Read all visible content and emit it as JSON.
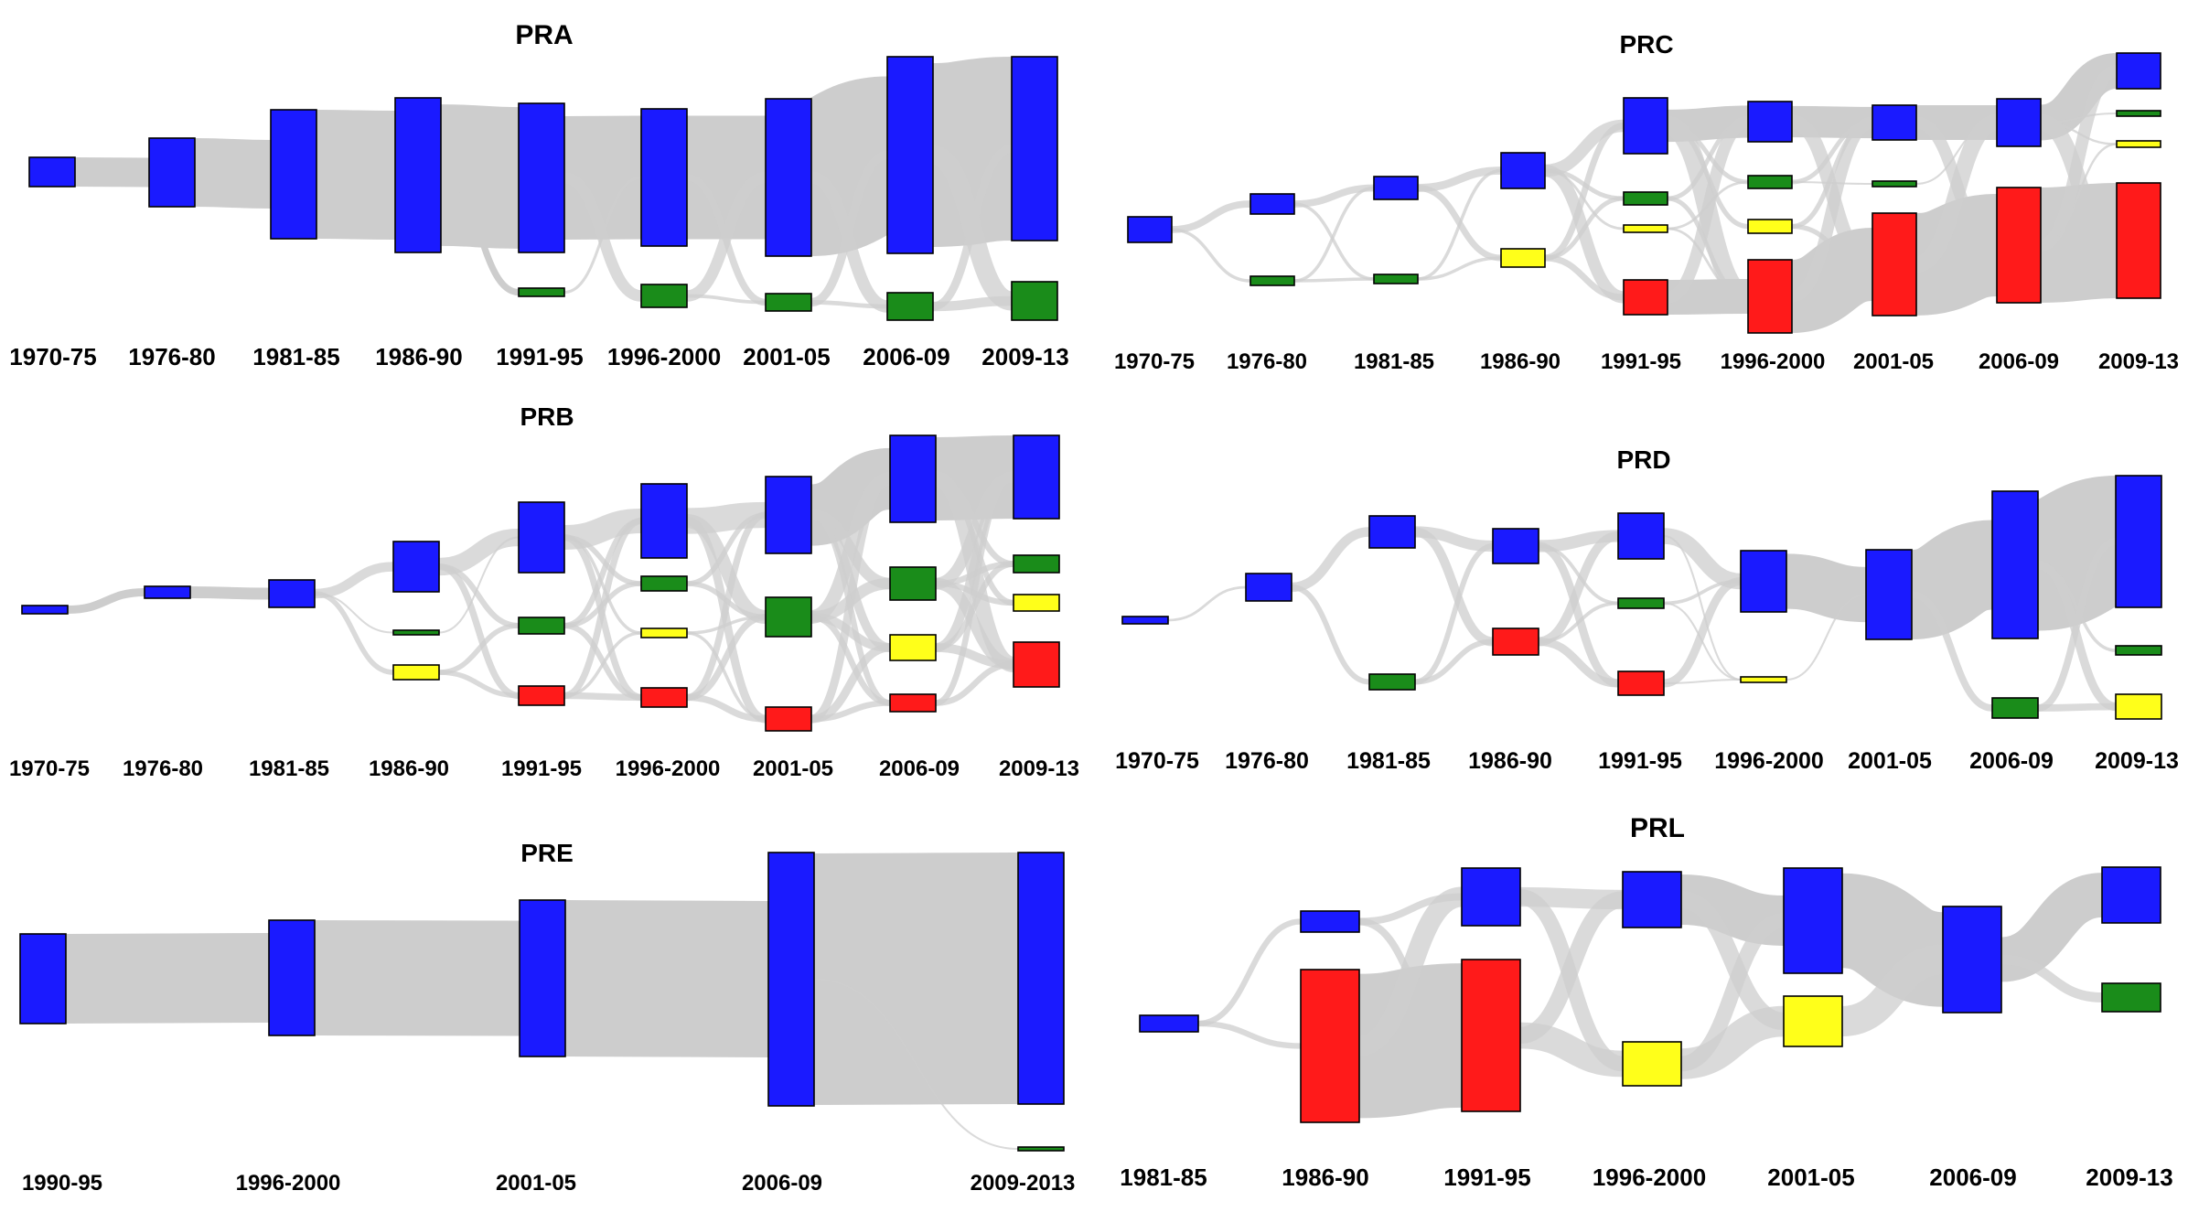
{
  "colors": {
    "flow": "#cdcdcd",
    "blue": "#1a1aff",
    "green": "#1a8c1a",
    "yellow": "#ffff1a",
    "red": "#ff1a1a"
  },
  "panels": [
    {
      "id": "pra",
      "title": "PRA",
      "periods": [
        "1970-75",
        "1976-80",
        "1981-85",
        "1986-90",
        "1991-95",
        "1996-2000",
        "2001-05",
        "2006-09",
        "2009-13"
      ],
      "nodes": [
        {
          "id": "a0b",
          "col": 0,
          "color": "blue"
        },
        {
          "id": "a1b",
          "col": 1,
          "color": "blue"
        },
        {
          "id": "a2b",
          "col": 2,
          "color": "blue"
        },
        {
          "id": "a3b",
          "col": 3,
          "color": "blue"
        },
        {
          "id": "a4b",
          "col": 4,
          "color": "blue"
        },
        {
          "id": "a4g",
          "col": 4,
          "color": "green"
        },
        {
          "id": "a5b",
          "col": 5,
          "color": "blue"
        },
        {
          "id": "a5g",
          "col": 5,
          "color": "green"
        },
        {
          "id": "a6b",
          "col": 6,
          "color": "blue"
        },
        {
          "id": "a6g",
          "col": 6,
          "color": "green"
        },
        {
          "id": "a7b",
          "col": 7,
          "color": "blue"
        },
        {
          "id": "a7g",
          "col": 7,
          "color": "green"
        },
        {
          "id": "a8b",
          "col": 8,
          "color": "blue"
        },
        {
          "id": "a8g",
          "col": 8,
          "color": "green"
        }
      ],
      "links": [
        [
          "a0b",
          "a1b"
        ],
        [
          "a1b",
          "a2b"
        ],
        [
          "a2b",
          "a3b"
        ],
        [
          "a3b",
          "a4b"
        ],
        [
          "a3b",
          "a4g"
        ],
        [
          "a4b",
          "a5b"
        ],
        [
          "a4b",
          "a5g"
        ],
        [
          "a4g",
          "a5b"
        ],
        [
          "a5b",
          "a6b"
        ],
        [
          "a5b",
          "a6g"
        ],
        [
          "a5g",
          "a6b"
        ],
        [
          "a5g",
          "a6g"
        ],
        [
          "a6b",
          "a7b"
        ],
        [
          "a6b",
          "a7g"
        ],
        [
          "a6g",
          "a7b"
        ],
        [
          "a6g",
          "a7g"
        ],
        [
          "a7b",
          "a8b"
        ],
        [
          "a7b",
          "a8g"
        ],
        [
          "a7g",
          "a8b"
        ],
        [
          "a7g",
          "a8g"
        ]
      ]
    },
    {
      "id": "prc",
      "title": "PRC",
      "periods": [
        "1970-75",
        "1976-80",
        "1981-85",
        "1986-90",
        "1991-95",
        "1996-2000",
        "2001-05",
        "2006-09",
        "2009-13"
      ],
      "nodes": [
        {
          "id": "c0b",
          "col": 0,
          "color": "blue"
        },
        {
          "id": "c1b",
          "col": 1,
          "color": "blue"
        },
        {
          "id": "c1g",
          "col": 1,
          "color": "green"
        },
        {
          "id": "c2b",
          "col": 2,
          "color": "blue"
        },
        {
          "id": "c2g",
          "col": 2,
          "color": "green"
        },
        {
          "id": "c3b",
          "col": 3,
          "color": "blue"
        },
        {
          "id": "c3y",
          "col": 3,
          "color": "yellow"
        },
        {
          "id": "c4b",
          "col": 4,
          "color": "blue"
        },
        {
          "id": "c4g",
          "col": 4,
          "color": "green"
        },
        {
          "id": "c4y",
          "col": 4,
          "color": "yellow"
        },
        {
          "id": "c4r",
          "col": 4,
          "color": "red"
        },
        {
          "id": "c5b",
          "col": 5,
          "color": "blue"
        },
        {
          "id": "c5g",
          "col": 5,
          "color": "green"
        },
        {
          "id": "c5y",
          "col": 5,
          "color": "yellow"
        },
        {
          "id": "c5r",
          "col": 5,
          "color": "red"
        },
        {
          "id": "c6b",
          "col": 6,
          "color": "blue"
        },
        {
          "id": "c6g",
          "col": 6,
          "color": "green"
        },
        {
          "id": "c6r",
          "col": 6,
          "color": "red"
        },
        {
          "id": "c7b",
          "col": 7,
          "color": "blue"
        },
        {
          "id": "c7r",
          "col": 7,
          "color": "red"
        },
        {
          "id": "c8b",
          "col": 8,
          "color": "blue"
        },
        {
          "id": "c8g",
          "col": 8,
          "color": "green"
        },
        {
          "id": "c8y",
          "col": 8,
          "color": "yellow"
        },
        {
          "id": "c8r",
          "col": 8,
          "color": "red"
        }
      ],
      "links": [
        [
          "c0b",
          "c1b"
        ],
        [
          "c0b",
          "c1g"
        ],
        [
          "c1b",
          "c2b"
        ],
        [
          "c1b",
          "c2g"
        ],
        [
          "c1g",
          "c2b"
        ],
        [
          "c1g",
          "c2g"
        ],
        [
          "c2b",
          "c3b"
        ],
        [
          "c2b",
          "c3y"
        ],
        [
          "c2g",
          "c3b"
        ],
        [
          "c2g",
          "c3y"
        ],
        [
          "c3b",
          "c4b"
        ],
        [
          "c3b",
          "c4g"
        ],
        [
          "c3b",
          "c4y"
        ],
        [
          "c3b",
          "c4r"
        ],
        [
          "c3y",
          "c4b"
        ],
        [
          "c3y",
          "c4g"
        ],
        [
          "c3y",
          "c4r"
        ],
        [
          "c4b",
          "c5b"
        ],
        [
          "c4b",
          "c5g"
        ],
        [
          "c4b",
          "c5y"
        ],
        [
          "c4b",
          "c5r"
        ],
        [
          "c4g",
          "c5b"
        ],
        [
          "c4g",
          "c5r"
        ],
        [
          "c4y",
          "c5g"
        ],
        [
          "c4y",
          "c5r"
        ],
        [
          "c4r",
          "c5r"
        ],
        [
          "c4r",
          "c5b"
        ],
        [
          "c5b",
          "c6b"
        ],
        [
          "c5b",
          "c6r"
        ],
        [
          "c5g",
          "c6b"
        ],
        [
          "c5g",
          "c6g"
        ],
        [
          "c5y",
          "c6b"
        ],
        [
          "c5y",
          "c6r"
        ],
        [
          "c5r",
          "c6r"
        ],
        [
          "c5r",
          "c6b"
        ],
        [
          "c6b",
          "c7b"
        ],
        [
          "c6b",
          "c7r"
        ],
        [
          "c6g",
          "c7b"
        ],
        [
          "c6r",
          "c7r"
        ],
        [
          "c6r",
          "c7b"
        ],
        [
          "c7b",
          "c8b"
        ],
        [
          "c7b",
          "c8g"
        ],
        [
          "c7b",
          "c8y"
        ],
        [
          "c7b",
          "c8r"
        ],
        [
          "c7r",
          "c8r"
        ],
        [
          "c7r",
          "c8b"
        ],
        [
          "c7r",
          "c8y"
        ]
      ]
    },
    {
      "id": "prb",
      "title": "PRB",
      "periods": [
        "1970-75",
        "1976-80",
        "1981-85",
        "1986-90",
        "1991-95",
        "1996-2000",
        "2001-05",
        "2006-09",
        "2009-13"
      ],
      "nodes": [
        {
          "id": "b0b",
          "col": 0,
          "color": "blue"
        },
        {
          "id": "b1b",
          "col": 1,
          "color": "blue"
        },
        {
          "id": "b2b",
          "col": 2,
          "color": "blue"
        },
        {
          "id": "b3b",
          "col": 3,
          "color": "blue"
        },
        {
          "id": "b3g",
          "col": 3,
          "color": "green"
        },
        {
          "id": "b3y",
          "col": 3,
          "color": "yellow"
        },
        {
          "id": "b4b",
          "col": 4,
          "color": "blue"
        },
        {
          "id": "b4g",
          "col": 4,
          "color": "green"
        },
        {
          "id": "b4r",
          "col": 4,
          "color": "red"
        },
        {
          "id": "b5b",
          "col": 5,
          "color": "blue"
        },
        {
          "id": "b5g",
          "col": 5,
          "color": "green"
        },
        {
          "id": "b5y",
          "col": 5,
          "color": "yellow"
        },
        {
          "id": "b5r",
          "col": 5,
          "color": "red"
        },
        {
          "id": "b6b",
          "col": 6,
          "color": "blue"
        },
        {
          "id": "b6g",
          "col": 6,
          "color": "green"
        },
        {
          "id": "b6r",
          "col": 6,
          "color": "red"
        },
        {
          "id": "b7b",
          "col": 7,
          "color": "blue"
        },
        {
          "id": "b7g",
          "col": 7,
          "color": "green"
        },
        {
          "id": "b7y",
          "col": 7,
          "color": "yellow"
        },
        {
          "id": "b7r",
          "col": 7,
          "color": "red"
        },
        {
          "id": "b8b",
          "col": 8,
          "color": "blue"
        },
        {
          "id": "b8g",
          "col": 8,
          "color": "green"
        },
        {
          "id": "b8y",
          "col": 8,
          "color": "yellow"
        },
        {
          "id": "b8r",
          "col": 8,
          "color": "red"
        }
      ],
      "links": [
        [
          "b0b",
          "b1b"
        ],
        [
          "b1b",
          "b2b"
        ],
        [
          "b2b",
          "b3b"
        ],
        [
          "b2b",
          "b3g"
        ],
        [
          "b2b",
          "b3y"
        ],
        [
          "b3b",
          "b4b"
        ],
        [
          "b3b",
          "b4g"
        ],
        [
          "b3b",
          "b4r"
        ],
        [
          "b3g",
          "b4b"
        ],
        [
          "b3y",
          "b4g"
        ],
        [
          "b3y",
          "b4r"
        ],
        [
          "b4b",
          "b5b"
        ],
        [
          "b4b",
          "b5g"
        ],
        [
          "b4b",
          "b5y"
        ],
        [
          "b4b",
          "b5r"
        ],
        [
          "b4g",
          "b5b"
        ],
        [
          "b4g",
          "b5g"
        ],
        [
          "b4g",
          "b5r"
        ],
        [
          "b4r",
          "b5r"
        ],
        [
          "b4r",
          "b5b"
        ],
        [
          "b4r",
          "b5y"
        ],
        [
          "b5b",
          "b6b"
        ],
        [
          "b5b",
          "b6g"
        ],
        [
          "b5b",
          "b6r"
        ],
        [
          "b5g",
          "b6b"
        ],
        [
          "b5g",
          "b6g"
        ],
        [
          "b5y",
          "b6g"
        ],
        [
          "b5y",
          "b6r"
        ],
        [
          "b5r",
          "b6r"
        ],
        [
          "b5r",
          "b6g"
        ],
        [
          "b5r",
          "b6b"
        ],
        [
          "b6b",
          "b7b"
        ],
        [
          "b6b",
          "b7g"
        ],
        [
          "b6b",
          "b7y"
        ],
        [
          "b6b",
          "b7r"
        ],
        [
          "b6g",
          "b7b"
        ],
        [
          "b6g",
          "b7g"
        ],
        [
          "b6g",
          "b7y"
        ],
        [
          "b6g",
          "b7r"
        ],
        [
          "b6r",
          "b7r"
        ],
        [
          "b6r",
          "b7y"
        ],
        [
          "b6r",
          "b7b"
        ],
        [
          "b7b",
          "b8b"
        ],
        [
          "b7b",
          "b8g"
        ],
        [
          "b7b",
          "b8y"
        ],
        [
          "b7b",
          "b8r"
        ],
        [
          "b7g",
          "b8b"
        ],
        [
          "b7g",
          "b8g"
        ],
        [
          "b7g",
          "b8y"
        ],
        [
          "b7g",
          "b8r"
        ],
        [
          "b7y",
          "b8r"
        ],
        [
          "b7y",
          "b8g"
        ],
        [
          "b7y",
          "b8b"
        ],
        [
          "b7r",
          "b8r"
        ],
        [
          "b7r",
          "b8b"
        ]
      ]
    },
    {
      "id": "prd",
      "title": "PRD",
      "periods": [
        "1970-75",
        "1976-80",
        "1981-85",
        "1986-90",
        "1991-95",
        "1996-2000",
        "2001-05",
        "2006-09",
        "2009-13"
      ],
      "nodes": [
        {
          "id": "d0b",
          "col": 0,
          "color": "blue"
        },
        {
          "id": "d1b",
          "col": 1,
          "color": "blue"
        },
        {
          "id": "d2b",
          "col": 2,
          "color": "blue"
        },
        {
          "id": "d2g",
          "col": 2,
          "color": "green"
        },
        {
          "id": "d3b",
          "col": 3,
          "color": "blue"
        },
        {
          "id": "d3r",
          "col": 3,
          "color": "red"
        },
        {
          "id": "d4b",
          "col": 4,
          "color": "blue"
        },
        {
          "id": "d4g",
          "col": 4,
          "color": "green"
        },
        {
          "id": "d4r",
          "col": 4,
          "color": "red"
        },
        {
          "id": "d5b",
          "col": 5,
          "color": "blue"
        },
        {
          "id": "d5y",
          "col": 5,
          "color": "yellow"
        },
        {
          "id": "d6b",
          "col": 6,
          "color": "blue"
        },
        {
          "id": "d7b",
          "col": 7,
          "color": "blue"
        },
        {
          "id": "d7g",
          "col": 7,
          "color": "green"
        },
        {
          "id": "d8b",
          "col": 8,
          "color": "blue"
        },
        {
          "id": "d8g",
          "col": 8,
          "color": "green"
        },
        {
          "id": "d8y",
          "col": 8,
          "color": "yellow"
        }
      ],
      "links": [
        [
          "d0b",
          "d1b"
        ],
        [
          "d1b",
          "d2b"
        ],
        [
          "d1b",
          "d2g"
        ],
        [
          "d2b",
          "d3b"
        ],
        [
          "d2b",
          "d3r"
        ],
        [
          "d2g",
          "d3r"
        ],
        [
          "d2g",
          "d3b"
        ],
        [
          "d3b",
          "d4b"
        ],
        [
          "d3b",
          "d4g"
        ],
        [
          "d3b",
          "d4r"
        ],
        [
          "d3r",
          "d4b"
        ],
        [
          "d3r",
          "d4r"
        ],
        [
          "d3r",
          "d4g"
        ],
        [
          "d4b",
          "d5b"
        ],
        [
          "d4b",
          "d5y"
        ],
        [
          "d4g",
          "d5b"
        ],
        [
          "d4g",
          "d5y"
        ],
        [
          "d4r",
          "d5b"
        ],
        [
          "d4r",
          "d5y"
        ],
        [
          "d5b",
          "d6b"
        ],
        [
          "d5y",
          "d6b"
        ],
        [
          "d6b",
          "d7b"
        ],
        [
          "d6b",
          "d7g"
        ],
        [
          "d7b",
          "d8b"
        ],
        [
          "d7b",
          "d8g"
        ],
        [
          "d7b",
          "d8y"
        ],
        [
          "d7g",
          "d8y"
        ],
        [
          "d7g",
          "d8b"
        ]
      ]
    },
    {
      "id": "pre",
      "title": "PRE",
      "periods": [
        "1990-95",
        "1996-2000",
        "2001-05",
        "2006-09",
        "2009-2013"
      ],
      "nodes": [
        {
          "id": "e0b",
          "col": 0,
          "color": "blue"
        },
        {
          "id": "e1b",
          "col": 1,
          "color": "blue"
        },
        {
          "id": "e2b",
          "col": 2,
          "color": "blue"
        },
        {
          "id": "e3b",
          "col": 3,
          "color": "blue"
        },
        {
          "id": "e4b",
          "col": 4,
          "color": "blue"
        },
        {
          "id": "e4g",
          "col": 4,
          "color": "green"
        }
      ],
      "links": [
        [
          "e0b",
          "e1b"
        ],
        [
          "e1b",
          "e2b"
        ],
        [
          "e2b",
          "e3b"
        ],
        [
          "e3b",
          "e4b"
        ],
        [
          "e3b",
          "e4g"
        ]
      ]
    },
    {
      "id": "prl",
      "title": "PRL",
      "periods": [
        "1981-85",
        "1986-90",
        "1991-95",
        "1996-2000",
        "2001-05",
        "2006-09",
        "2009-13"
      ],
      "nodes": [
        {
          "id": "l0b",
          "col": 0,
          "color": "blue"
        },
        {
          "id": "l1b",
          "col": 1,
          "color": "blue"
        },
        {
          "id": "l1r",
          "col": 1,
          "color": "red"
        },
        {
          "id": "l2b",
          "col": 2,
          "color": "blue"
        },
        {
          "id": "l2r",
          "col": 2,
          "color": "red"
        },
        {
          "id": "l3b",
          "col": 3,
          "color": "blue"
        },
        {
          "id": "l3y",
          "col": 3,
          "color": "yellow"
        },
        {
          "id": "l4b",
          "col": 4,
          "color": "blue"
        },
        {
          "id": "l4y",
          "col": 4,
          "color": "yellow"
        },
        {
          "id": "l5b",
          "col": 5,
          "color": "blue"
        },
        {
          "id": "l6b",
          "col": 6,
          "color": "blue"
        },
        {
          "id": "l6g",
          "col": 6,
          "color": "green"
        }
      ],
      "links": [
        [
          "l0b",
          "l1b"
        ],
        [
          "l0b",
          "l1r"
        ],
        [
          "l1b",
          "l2b"
        ],
        [
          "l1b",
          "l2r"
        ],
        [
          "l1r",
          "l2r"
        ],
        [
          "l1r",
          "l2b"
        ],
        [
          "l2b",
          "l3b"
        ],
        [
          "l2b",
          "l3y"
        ],
        [
          "l2r",
          "l3b"
        ],
        [
          "l2r",
          "l3y"
        ],
        [
          "l3b",
          "l4b"
        ],
        [
          "l3b",
          "l4y"
        ],
        [
          "l3y",
          "l4y"
        ],
        [
          "l3y",
          "l4b"
        ],
        [
          "l4b",
          "l5b"
        ],
        [
          "l4y",
          "l5b"
        ],
        [
          "l5b",
          "l6b"
        ],
        [
          "l5b",
          "l6g"
        ]
      ]
    }
  ]
}
